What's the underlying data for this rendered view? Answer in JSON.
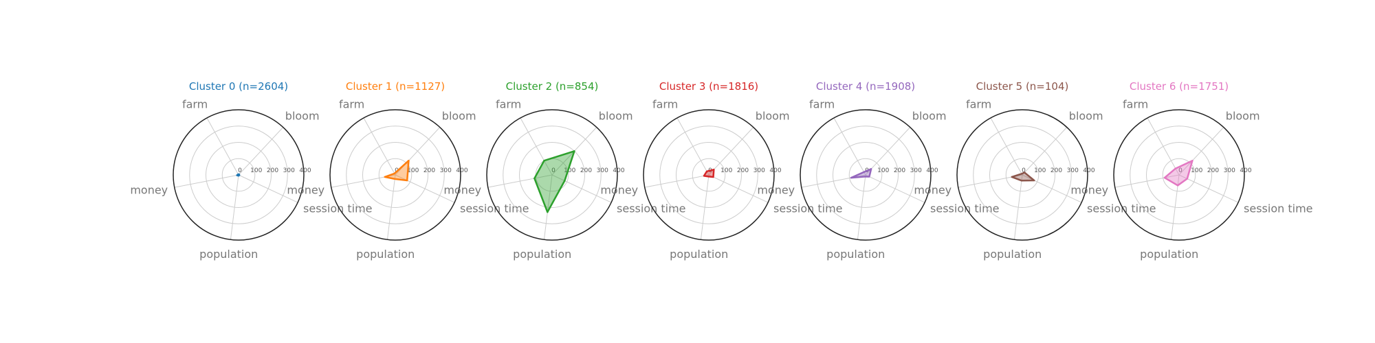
{
  "chart_data": {
    "type": "radar",
    "axes": [
      "farm",
      "bloom",
      "session time",
      "population",
      "money"
    ],
    "radial_ticks": [
      0,
      100,
      200,
      300,
      400
    ],
    "rlim": [
      0,
      400
    ],
    "grid": true,
    "clusters": [
      {
        "title": "Cluster 0 (n=2604)",
        "color": "#1f77b4",
        "values": [
          5,
          5,
          5,
          5,
          10
        ]
      },
      {
        "title": "Cluster 1 (n=1127)",
        "color": "#ff7f0e",
        "values": [
          10,
          120,
          80,
          25,
          65
        ]
      },
      {
        "title": "Cluster 2 (n=854)",
        "color": "#2ca02c",
        "values": [
          100,
          200,
          85,
          230,
          110
        ]
      },
      {
        "title": "Cluster 3 (n=1816)",
        "color": "#d62728",
        "values": [
          25,
          45,
          30,
          10,
          30
        ]
      },
      {
        "title": "Cluster 4 (n=1908)",
        "color": "#9467bd",
        "values": [
          20,
          50,
          25,
          10,
          90
        ]
      },
      {
        "title": "Cluster 5 (n=104)",
        "color": "#8c564b",
        "values": [
          8,
          20,
          80,
          35,
          65
        ]
      },
      {
        "title": "Cluster 6 (n=1751)",
        "color": "#e377c2",
        "values": [
          45,
          120,
          55,
          65,
          90
        ]
      }
    ]
  }
}
